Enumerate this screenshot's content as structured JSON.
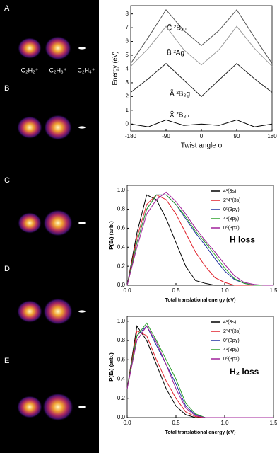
{
  "panels": [
    "A",
    "B",
    "C",
    "D",
    "E"
  ],
  "ions": [
    "C₂H₂⁺",
    "C₂H₃⁺",
    "C₂H₄⁺"
  ],
  "chart_data": [
    {
      "type": "line",
      "ylabel": "Energy (eV)",
      "xlabel": "Twist angle ϕ",
      "x": [
        -180,
        -135,
        -90,
        -45,
        0,
        45,
        90,
        135,
        180
      ],
      "series": [
        {
          "name": "C̃ ²B₂ᵤ",
          "color": "#555555",
          "values": [
            4.4,
            6.3,
            8.3,
            6.8,
            5.7,
            6.8,
            8.3,
            6.3,
            4.4
          ]
        },
        {
          "name": "B̃ ²Ag",
          "color": "#999999",
          "values": [
            4.2,
            5.5,
            7.1,
            5.4,
            4.3,
            5.4,
            7.1,
            5.5,
            4.2
          ]
        },
        {
          "name": "Ã ²B₃g",
          "color": "#222222",
          "values": [
            2.3,
            3.3,
            4.4,
            3.2,
            2.0,
            3.2,
            4.4,
            3.3,
            2.3
          ]
        },
        {
          "name": "X̃ ²B₃ᵤ",
          "color": "#000000",
          "values": [
            0,
            -0.2,
            0.3,
            -0.1,
            0,
            -0.1,
            0.3,
            -0.2,
            0
          ]
        }
      ],
      "xlim": [
        -180,
        180
      ],
      "xticks": [
        -180,
        -90,
        0,
        90,
        180
      ],
      "ylim": [
        -0.5,
        8.6
      ],
      "yticks": [
        0,
        1,
        2,
        3,
        4,
        5,
        6,
        7,
        8
      ]
    },
    {
      "type": "line",
      "ylabel": "P(Eₜ) (arb.)",
      "xlabel": "Total translational energy (eV)",
      "annotation": "H loss",
      "legend": "upper right",
      "x": [
        0,
        0.1,
        0.2,
        0.3,
        0.4,
        0.5,
        0.6,
        0.7,
        0.8,
        0.9,
        1.0,
        1.1,
        1.2,
        1.3,
        1.4,
        1.5
      ],
      "series": [
        {
          "name": "4¹(3s)",
          "color": "#000000",
          "values": [
            0,
            0.55,
            0.95,
            0.9,
            0.7,
            0.45,
            0.2,
            0.05,
            0.02,
            0,
            0,
            0,
            0,
            0,
            0,
            0
          ]
        },
        {
          "name": "2¹4¹(3s)",
          "color": "#e0202a",
          "values": [
            0,
            0.5,
            0.85,
            0.95,
            0.9,
            0.75,
            0.55,
            0.35,
            0.2,
            0.08,
            0.03,
            0,
            0,
            0,
            0,
            0
          ]
        },
        {
          "name": "0⁰(3py)",
          "color": "#2030a0",
          "values": [
            0,
            0.45,
            0.8,
            0.95,
            0.95,
            0.85,
            0.7,
            0.55,
            0.42,
            0.28,
            0.15,
            0.06,
            0.02,
            0,
            0,
            0
          ]
        },
        {
          "name": "4¹(3py)",
          "color": "#2aa02a",
          "values": [
            0,
            0.45,
            0.8,
            0.95,
            0.95,
            0.85,
            0.72,
            0.57,
            0.45,
            0.32,
            0.18,
            0.07,
            0.02,
            0,
            0,
            0
          ]
        },
        {
          "name": "0⁰(3pz)",
          "color": "#a0209a",
          "values": [
            0,
            0.4,
            0.75,
            0.9,
            0.98,
            0.88,
            0.75,
            0.6,
            0.47,
            0.35,
            0.22,
            0.1,
            0.03,
            0.01,
            0,
            0
          ]
        }
      ],
      "xlim": [
        0,
        1.5
      ],
      "xticks": [
        {
          "value": 0,
          "label": "0.0"
        },
        0.5,
        {
          "value": 1,
          "label": "1.0"
        },
        1.5
      ],
      "ylim": [
        0,
        1.05
      ],
      "yticks": [
        {
          "value": 0,
          "label": "0.0"
        },
        0.2,
        0.4,
        0.6,
        0.8,
        {
          "value": 1,
          "label": "1.0"
        }
      ]
    },
    {
      "type": "line",
      "ylabel": "P(Eₜ) (arb.)",
      "xlabel": "Total translational energy (eV)",
      "annotation": "H₂ loss",
      "legend": "upper right",
      "x": [
        0,
        0.1,
        0.2,
        0.3,
        0.4,
        0.5,
        0.6,
        0.7,
        0.8,
        0.9,
        1.0,
        1.1,
        1.2,
        1.3,
        1.4,
        1.5
      ],
      "series": [
        {
          "name": "4¹(3s)",
          "color": "#000000",
          "values": [
            0.3,
            0.95,
            0.8,
            0.55,
            0.3,
            0.12,
            0.03,
            0,
            0,
            0,
            0,
            0,
            0,
            0,
            0,
            0
          ]
        },
        {
          "name": "2¹4¹(3s)",
          "color": "#e0202a",
          "values": [
            0.3,
            0.9,
            0.85,
            0.6,
            0.38,
            0.2,
            0.06,
            0.01,
            0,
            0,
            0,
            0,
            0,
            0,
            0,
            0
          ]
        },
        {
          "name": "0⁰(3py)",
          "color": "#2030a0",
          "values": [
            0.3,
            0.85,
            0.95,
            0.75,
            0.55,
            0.35,
            0.12,
            0.03,
            0,
            0,
            0,
            0,
            0,
            0,
            0,
            0
          ]
        },
        {
          "name": "4¹(3py)",
          "color": "#2aa02a",
          "values": [
            0.3,
            0.85,
            0.98,
            0.8,
            0.6,
            0.4,
            0.15,
            0.04,
            0,
            0,
            0,
            0,
            0,
            0,
            0,
            0
          ]
        },
        {
          "name": "0⁰(3pz)",
          "color": "#a0209a",
          "values": [
            0.3,
            0.8,
            0.95,
            0.78,
            0.55,
            0.3,
            0.1,
            0.02,
            0,
            0,
            0,
            0,
            0,
            0,
            0,
            0
          ]
        }
      ],
      "xlim": [
        0,
        1.5
      ],
      "xticks": [
        {
          "value": 0,
          "label": "0.0"
        },
        0.5,
        {
          "value": 1,
          "label": "1.0"
        },
        1.5
      ],
      "ylim": [
        0,
        1.05
      ],
      "yticks": [
        {
          "value": 0,
          "label": "0.0"
        },
        0.2,
        0.4,
        0.6,
        0.8,
        {
          "value": 1,
          "label": "1.0"
        }
      ]
    }
  ]
}
